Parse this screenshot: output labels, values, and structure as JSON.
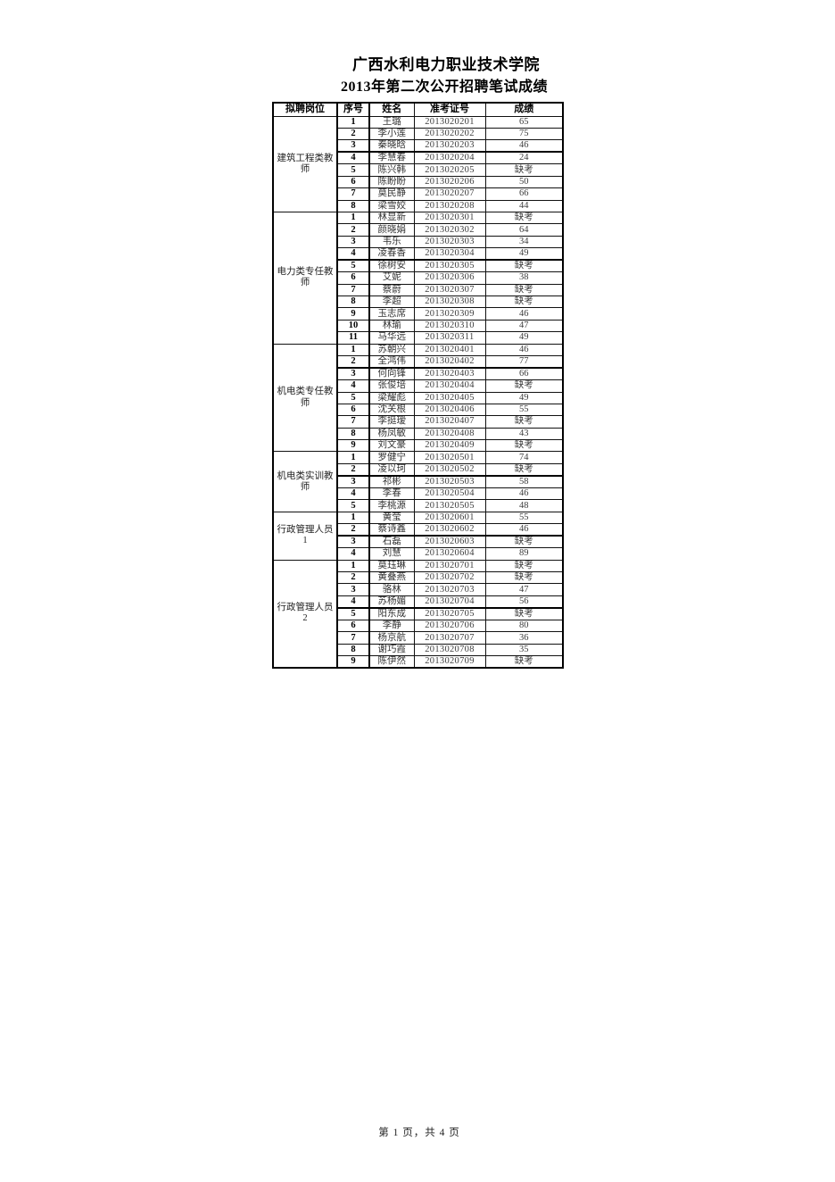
{
  "page": {
    "title_line1": "广西水利电力职业技术学院",
    "title_line2": "2013年第二次公开招聘笔试成绩",
    "footer": "第 1 页，共 4 页"
  },
  "table": {
    "headers": [
      "拟聘岗位",
      "序号",
      "姓名",
      "准考证号",
      "成绩"
    ],
    "absent_label": "缺考",
    "groups": [
      {
        "position": "建筑工程类教师",
        "divider_after_row": 3,
        "rows": [
          {
            "no": "1",
            "name": "王璐",
            "id": "2013020201",
            "score": "65"
          },
          {
            "no": "2",
            "name": "李小莲",
            "id": "2013020202",
            "score": "75"
          },
          {
            "no": "3",
            "name": "秦晓晗",
            "id": "2013020203",
            "score": "46"
          },
          {
            "no": "4",
            "name": "李慧春",
            "id": "2013020204",
            "score": "24"
          },
          {
            "no": "5",
            "name": "陈兴韩",
            "id": "2013020205",
            "score": "缺考"
          },
          {
            "no": "6",
            "name": "陈盼盼",
            "id": "2013020206",
            "score": "50"
          },
          {
            "no": "7",
            "name": "莫民静",
            "id": "2013020207",
            "score": "66"
          },
          {
            "no": "8",
            "name": "梁雪姣",
            "id": "2013020208",
            "score": "44"
          }
        ]
      },
      {
        "position": "电力类专任教师",
        "divider_after_row": 4,
        "rows": [
          {
            "no": "1",
            "name": "林显新",
            "id": "2013020301",
            "score": "缺考"
          },
          {
            "no": "2",
            "name": "颜晓娟",
            "id": "2013020302",
            "score": "64"
          },
          {
            "no": "3",
            "name": "韦乐",
            "id": "2013020303",
            "score": "34"
          },
          {
            "no": "4",
            "name": "凌春香",
            "id": "2013020304",
            "score": "49"
          },
          {
            "no": "5",
            "name": "徐树安",
            "id": "2013020305",
            "score": "缺考"
          },
          {
            "no": "6",
            "name": "艾妮",
            "id": "2013020306",
            "score": "38"
          },
          {
            "no": "7",
            "name": "蔡蔚",
            "id": "2013020307",
            "score": "缺考"
          },
          {
            "no": "8",
            "name": "李超",
            "id": "2013020308",
            "score": "缺考"
          },
          {
            "no": "9",
            "name": "玉志席",
            "id": "2013020309",
            "score": "46"
          },
          {
            "no": "10",
            "name": "林瑜",
            "id": "2013020310",
            "score": "47"
          },
          {
            "no": "11",
            "name": "马华远",
            "id": "2013020311",
            "score": "49"
          }
        ]
      },
      {
        "position": "机电类专任教师",
        "divider_after_row": 2,
        "rows": [
          {
            "no": "1",
            "name": "苏朝兴",
            "id": "2013020401",
            "score": "46"
          },
          {
            "no": "2",
            "name": "全鸿伟",
            "id": "2013020402",
            "score": "77"
          },
          {
            "no": "3",
            "name": "何向锋",
            "id": "2013020403",
            "score": "66"
          },
          {
            "no": "4",
            "name": "张俊培",
            "id": "2013020404",
            "score": "缺考"
          },
          {
            "no": "5",
            "name": "梁耀彪",
            "id": "2013020405",
            "score": "49"
          },
          {
            "no": "6",
            "name": "沈关根",
            "id": "2013020406",
            "score": "55"
          },
          {
            "no": "7",
            "name": "李挺瑷",
            "id": "2013020407",
            "score": "缺考"
          },
          {
            "no": "8",
            "name": "杨凤敏",
            "id": "2013020408",
            "score": "43"
          },
          {
            "no": "9",
            "name": "刘文豪",
            "id": "2013020409",
            "score": "缺考"
          }
        ]
      },
      {
        "position": "机电类实训教师",
        "divider_after_row": 2,
        "rows": [
          {
            "no": "1",
            "name": "罗健宁",
            "id": "2013020501",
            "score": "74"
          },
          {
            "no": "2",
            "name": "凌以珂",
            "id": "2013020502",
            "score": "缺考"
          },
          {
            "no": "3",
            "name": "祁彬",
            "id": "2013020503",
            "score": "58"
          },
          {
            "no": "4",
            "name": "李春",
            "id": "2013020504",
            "score": "46"
          },
          {
            "no": "5",
            "name": "李桃源",
            "id": "2013020505",
            "score": "48"
          }
        ]
      },
      {
        "position": "行政管理人员1",
        "divider_after_row": 2,
        "rows": [
          {
            "no": "1",
            "name": "黄莹",
            "id": "2013020601",
            "score": "55"
          },
          {
            "no": "2",
            "name": "蔡诗鑫",
            "id": "2013020602",
            "score": "46"
          },
          {
            "no": "3",
            "name": "石磊",
            "id": "2013020603",
            "score": "缺考"
          },
          {
            "no": "4",
            "name": "刘慧",
            "id": "2013020604",
            "score": "89"
          }
        ]
      },
      {
        "position": "行政管理人员2",
        "divider_after_row": 4,
        "rows": [
          {
            "no": "1",
            "name": "莫珏琳",
            "id": "2013020701",
            "score": "缺考"
          },
          {
            "no": "2",
            "name": "黄叠燕",
            "id": "2013020702",
            "score": "缺考"
          },
          {
            "no": "3",
            "name": "骆林",
            "id": "2013020703",
            "score": "47"
          },
          {
            "no": "4",
            "name": "苏杨媚",
            "id": "2013020704",
            "score": "56"
          },
          {
            "no": "5",
            "name": "阳东成",
            "id": "2013020705",
            "score": "缺考"
          },
          {
            "no": "6",
            "name": "李静",
            "id": "2013020706",
            "score": "80"
          },
          {
            "no": "7",
            "name": "杨京航",
            "id": "2013020707",
            "score": "36"
          },
          {
            "no": "8",
            "name": "谢巧霞",
            "id": "2013020708",
            "score": "35"
          },
          {
            "no": "9",
            "name": "陈伊然",
            "id": "2013020709",
            "score": "缺考"
          }
        ]
      }
    ]
  }
}
